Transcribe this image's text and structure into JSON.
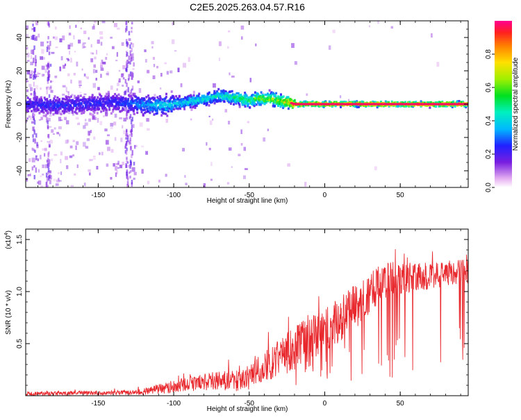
{
  "title": "C2E5.2025.263.04.57.R16",
  "chart_data": [
    {
      "type": "heatmap",
      "xlabel": "Height of straight line (km)",
      "ylabel": "Frequency (Hz)",
      "xlim": [
        -198,
        95
      ],
      "ylim": [
        -50,
        50
      ],
      "xticks": [
        -150,
        -100,
        -50,
        0,
        50
      ],
      "xtick_labels": [
        "-150",
        "-100",
        "-50",
        "0",
        "50"
      ],
      "yticks": [
        -40,
        -20,
        0,
        20,
        40
      ],
      "ytick_labels": [
        "-40",
        "-20",
        "0",
        "20",
        "40"
      ],
      "colorbar": {
        "label": "Normalized spectral amplitude",
        "range": [
          0,
          1
        ],
        "ticks": [
          0.0,
          0.2,
          0.4,
          0.6,
          0.8
        ],
        "tick_labels": [
          "0.0",
          "0.2",
          "0.4",
          "0.6",
          "0.8"
        ]
      },
      "ridge": {
        "x": [
          -198,
          -180,
          -160,
          -140,
          -125,
          -110,
          -100,
          -90,
          -80,
          -70,
          -60,
          -50,
          -45,
          -40,
          -35,
          -30,
          -25,
          -20,
          -10,
          0,
          20,
          40,
          60,
          80,
          95
        ],
        "freq": [
          0,
          -1,
          0,
          1,
          0,
          -1,
          0,
          1.5,
          3,
          5,
          4,
          2,
          3.5,
          3,
          3,
          2,
          1.5,
          0,
          0,
          0,
          0,
          0,
          0,
          0,
          0
        ],
        "amplitude": [
          0.25,
          0.28,
          0.28,
          0.28,
          0.35,
          0.45,
          0.45,
          0.48,
          0.48,
          0.5,
          0.55,
          0.65,
          0.68,
          0.7,
          0.72,
          0.75,
          0.85,
          0.92,
          0.95,
          0.97,
          0.97,
          0.97,
          0.97,
          0.97,
          0.97
        ]
      }
    },
    {
      "type": "line",
      "xlabel": "Height of straight line (km)",
      "ylabel": "SNR (10 * v/v)",
      "y_multiplier_label": "(x10",
      "y_multiplier_exp": "4",
      "y_multiplier_close": ")",
      "xlim": [
        -198,
        95
      ],
      "ylim": [
        0,
        1.6
      ],
      "xticks": [
        -150,
        -100,
        -50,
        0,
        50
      ],
      "xtick_labels": [
        "-150",
        "-100",
        "-50",
        "0",
        "50"
      ],
      "yticks": [
        0.5,
        1.0,
        1.5
      ],
      "ytick_labels": [
        "0.5",
        "1.0",
        "1.5"
      ],
      "series_color": "#e8282d",
      "trend": {
        "x": [
          -198,
          -130,
          -120,
          -110,
          -100,
          -90,
          -80,
          -70,
          -60,
          -50,
          -40,
          -30,
          -20,
          -10,
          0,
          10,
          20,
          30,
          40,
          50,
          60,
          70,
          80,
          95
        ],
        "mean": [
          0.02,
          0.03,
          0.04,
          0.06,
          0.09,
          0.11,
          0.13,
          0.15,
          0.14,
          0.17,
          0.28,
          0.37,
          0.46,
          0.55,
          0.62,
          0.74,
          0.86,
          0.98,
          1.12,
          1.12,
          1.15,
          1.14,
          1.18,
          1.2
        ],
        "spread": [
          0.02,
          0.02,
          0.03,
          0.05,
          0.06,
          0.07,
          0.08,
          0.09,
          0.1,
          0.12,
          0.15,
          0.18,
          0.2,
          0.22,
          0.22,
          0.22,
          0.22,
          0.2,
          0.18,
          0.16,
          0.14,
          0.13,
          0.12,
          0.12
        ]
      }
    }
  ]
}
